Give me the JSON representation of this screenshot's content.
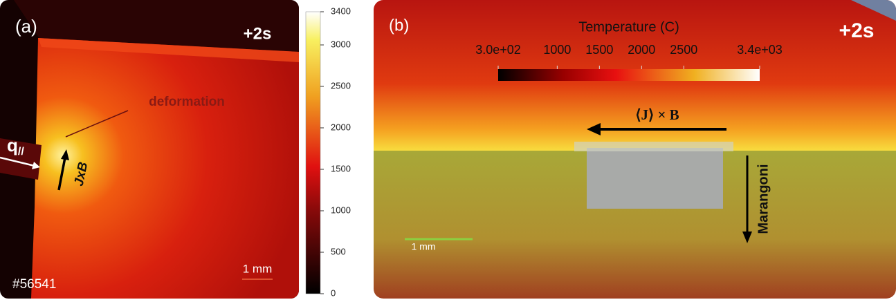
{
  "panel_a": {
    "label": "(a)",
    "time": "+2s",
    "annotation": "deformation",
    "flux_symbol": "q",
    "flux_subscript": "//",
    "current_label": "JxB",
    "scale_bar": "1 mm",
    "shot": "#56541",
    "colorbar": {
      "range": [
        0,
        3400
      ],
      "ticks": [
        0,
        500,
        1000,
        1500,
        2000,
        2500,
        3000,
        3400
      ]
    }
  },
  "panel_b": {
    "label": "(b)",
    "time": "+2s",
    "colorbar_title": "Temperature (C)",
    "colorbar": {
      "range": [
        300,
        3400
      ],
      "ticks": [
        {
          "value": 300,
          "label": "3.0e+02"
        },
        1000,
        1500,
        2000,
        2500,
        {
          "value": 3400,
          "label": "3.4e+03"
        }
      ]
    },
    "force_label": "⟨J⟩ × B",
    "flow_label": "Marangoni",
    "scale_bar": "1 mm"
  }
}
